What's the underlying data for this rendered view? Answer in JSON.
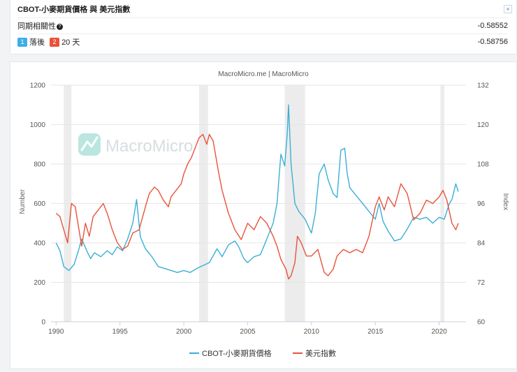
{
  "header": {
    "title": "CBOT-小麥期貨價格 與 美元指數",
    "close_label": "×",
    "correlation_label": "同期相關性",
    "correlation_help": "?",
    "correlation_value": "-0.58552",
    "lag_badge1": "1",
    "lag_text1": "落後",
    "lag_badge2": "2",
    "lag_text2": "20 天",
    "lag_value": "-0.58756"
  },
  "chart_data": {
    "type": "line",
    "credit": "MacroMicro.me | MacroMicro",
    "watermark": "MacroMicro",
    "xlim": [
      1989.6,
      2022.1
    ],
    "x_ticks": [
      "1990",
      "1995",
      "2000",
      "2005",
      "2010",
      "2015",
      "2020"
    ],
    "recessions": [
      [
        1990.6,
        1991.2
      ],
      [
        2001.2,
        2001.9
      ],
      [
        2007.9,
        2009.5
      ],
      [
        2020.1,
        2020.4
      ]
    ],
    "left_axis": {
      "label": "Number",
      "ylim": [
        0,
        1200
      ],
      "ticks": [
        "0",
        "200",
        "400",
        "600",
        "800",
        "1000",
        "1200"
      ]
    },
    "right_axis": {
      "label": "Index",
      "ylim": [
        60,
        132
      ],
      "ticks": [
        "60",
        "72",
        "84",
        "96",
        "108",
        "120",
        "132"
      ]
    },
    "series": [
      {
        "name": "CBOT-小麥期貨價格",
        "axis": "left",
        "color": "#3aafd6",
        "x": [
          1990,
          1990.3,
          1990.6,
          1991,
          1991.4,
          1991.7,
          1992,
          1992.4,
          1992.7,
          1993,
          1993.5,
          1994,
          1994.4,
          1994.8,
          1995.2,
          1995.6,
          1996,
          1996.3,
          1996.6,
          1997,
          1997.5,
          1998,
          1998.5,
          1999,
          1999.5,
          2000,
          2000.5,
          2001,
          2001.5,
          2002,
          2002.6,
          2003,
          2003.5,
          2004,
          2004.3,
          2004.7,
          2005,
          2005.5,
          2006,
          2006.5,
          2007,
          2007.3,
          2007.6,
          2007.9,
          2008.1,
          2008.2,
          2008.4,
          2008.7,
          2009,
          2009.5,
          2010,
          2010.3,
          2010.6,
          2011,
          2011.3,
          2011.7,
          2012,
          2012.3,
          2012.6,
          2012.8,
          2013,
          2013.5,
          2014,
          2014.5,
          2015,
          2015.3,
          2015.6,
          2016,
          2016.5,
          2017,
          2017.5,
          2018,
          2018.5,
          2019,
          2019.5,
          2020,
          2020.4,
          2020.8,
          2021,
          2021.3,
          2021.5
        ],
        "y": [
          400,
          360,
          280,
          260,
          290,
          350,
          420,
          360,
          320,
          350,
          330,
          360,
          340,
          380,
          360,
          420,
          500,
          620,
          430,
          370,
          330,
          280,
          270,
          260,
          250,
          260,
          250,
          270,
          285,
          300,
          370,
          330,
          390,
          410,
          380,
          320,
          300,
          330,
          340,
          420,
          500,
          600,
          850,
          790,
          950,
          1100,
          800,
          600,
          560,
          520,
          450,
          550,
          750,
          800,
          720,
          650,
          630,
          870,
          880,
          750,
          680,
          640,
          600,
          560,
          520,
          600,
          510,
          460,
          410,
          420,
          470,
          530,
          520,
          530,
          500,
          530,
          520,
          600,
          620,
          700,
          660
        ]
      },
      {
        "name": "美元指數",
        "axis": "right",
        "color": "#e8533a",
        "x": [
          1990,
          1990.3,
          1990.6,
          1990.9,
          1991.2,
          1991.5,
          1992,
          1992.3,
          1992.6,
          1992.9,
          1993.3,
          1993.7,
          1994,
          1994.4,
          1994.8,
          1995.2,
          1995.6,
          1996,
          1996.5,
          1997,
          1997.3,
          1997.7,
          1998,
          1998.4,
          1998.8,
          1999,
          1999.4,
          1999.8,
          2000,
          2000.3,
          2000.6,
          2000.9,
          2001.2,
          2001.5,
          2001.8,
          2002,
          2002.3,
          2002.7,
          2003,
          2003.5,
          2004,
          2004.5,
          2005,
          2005.5,
          2006,
          2006.5,
          2007,
          2007.3,
          2007.6,
          2008,
          2008.2,
          2008.4,
          2008.7,
          2008.9,
          2009.2,
          2009.6,
          2010,
          2010.5,
          2011,
          2011.3,
          2011.7,
          2012,
          2012.5,
          2013,
          2013.5,
          2014,
          2014.5,
          2015,
          2015.3,
          2015.7,
          2016,
          2016.5,
          2017,
          2017.5,
          2018,
          2018.5,
          2019,
          2019.5,
          2020,
          2020.3,
          2020.6,
          2021,
          2021.3,
          2021.5
        ],
        "y": [
          93,
          92,
          88,
          84,
          96,
          95,
          83,
          90,
          86,
          92,
          94,
          96,
          93,
          88,
          84,
          82,
          83,
          87,
          88,
          95,
          99,
          101,
          100,
          97,
          95,
          98,
          100,
          102,
          105,
          108,
          110,
          113,
          116,
          117,
          114,
          117,
          115,
          106,
          100,
          93,
          88,
          85,
          90,
          88,
          92,
          90,
          86,
          83,
          79,
          76,
          73,
          74,
          78,
          86,
          84,
          80,
          80,
          82,
          75,
          74,
          76,
          80,
          82,
          81,
          82,
          81,
          86,
          95,
          98,
          94,
          98,
          95,
          102,
          99,
          91,
          93,
          97,
          96,
          98,
          100,
          97,
          90,
          88,
          90
        ]
      }
    ],
    "legend": [
      "CBOT-小麥期貨價格",
      "美元指數"
    ]
  }
}
